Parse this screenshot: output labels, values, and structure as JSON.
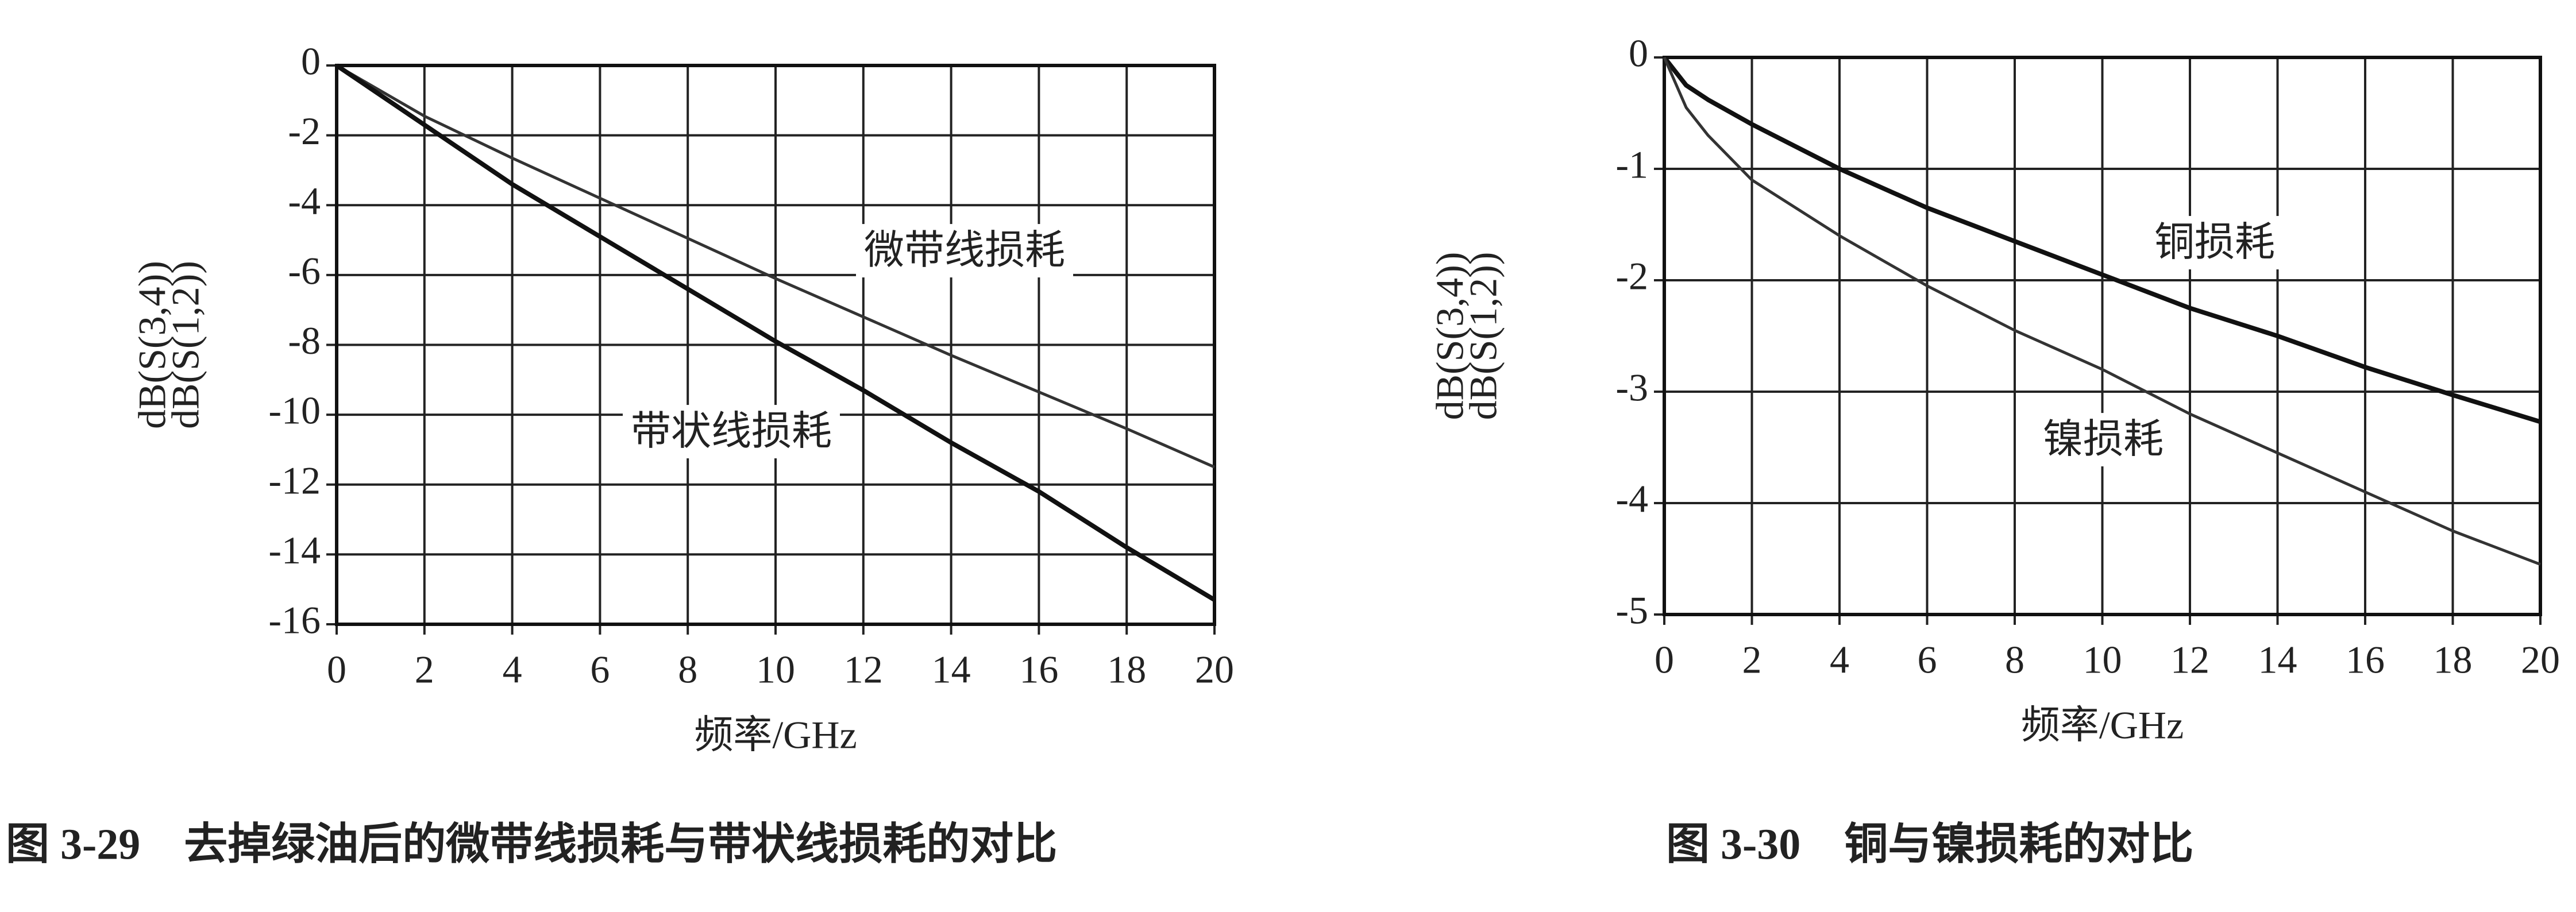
{
  "chart_data": [
    {
      "type": "line",
      "caption": "图 3-29　去掉绿油后的微带线损耗与带状线损耗的对比",
      "xlabel": "频率/GHz",
      "ylabel": [
        "dB(S(3,4))",
        "dB(S(1,2))"
      ],
      "x": [
        0,
        2,
        4,
        6,
        8,
        10,
        12,
        14,
        16,
        18,
        20
      ],
      "series": [
        {
          "name": "微带线损耗",
          "color": "#333333",
          "values": [
            0,
            -1.45,
            -2.65,
            -3.8,
            -4.95,
            -6.1,
            -7.2,
            -8.3,
            -9.35,
            -10.4,
            -11.5
          ]
        },
        {
          "name": "带状线损耗",
          "color": "#111111",
          "values": [
            0,
            -1.7,
            -3.4,
            -4.9,
            -6.4,
            -7.9,
            -9.3,
            -10.8,
            -12.2,
            -13.8,
            -15.3
          ]
        }
      ],
      "xlim": [
        0,
        20
      ],
      "ylim": [
        -16,
        0
      ],
      "xticks": [
        0,
        2,
        4,
        6,
        8,
        10,
        12,
        14,
        16,
        18,
        20
      ],
      "yticks": [
        0,
        -2,
        -4,
        -6,
        -8,
        -10,
        -12,
        -14,
        -16
      ],
      "grid": true
    },
    {
      "type": "line",
      "caption": "图 3-30　铜与镍损耗的对比",
      "xlabel": "频率/GHz",
      "ylabel": [
        "dB(S(3,4))",
        "dB(S(1,2))"
      ],
      "x": [
        0,
        0.5,
        1,
        2,
        4,
        6,
        8,
        10,
        12,
        14,
        16,
        18,
        20
      ],
      "series": [
        {
          "name": "铜损耗",
          "color": "#111111",
          "values": [
            0,
            -0.25,
            -0.38,
            -0.6,
            -1.0,
            -1.35,
            -1.65,
            -1.95,
            -2.25,
            -2.5,
            -2.78,
            -3.03,
            -3.27
          ]
        },
        {
          "name": "镍损耗",
          "color": "#333333",
          "values": [
            0,
            -0.45,
            -0.7,
            -1.1,
            -1.6,
            -2.05,
            -2.45,
            -2.8,
            -3.2,
            -3.55,
            -3.9,
            -4.25,
            -4.55
          ]
        }
      ],
      "xlim": [
        0,
        20
      ],
      "ylim": [
        -5,
        0
      ],
      "xticks": [
        0,
        2,
        4,
        6,
        8,
        10,
        12,
        14,
        16,
        18,
        20
      ],
      "yticks": [
        0,
        -1,
        -2,
        -3,
        -4,
        -5
      ],
      "grid": true
    }
  ]
}
